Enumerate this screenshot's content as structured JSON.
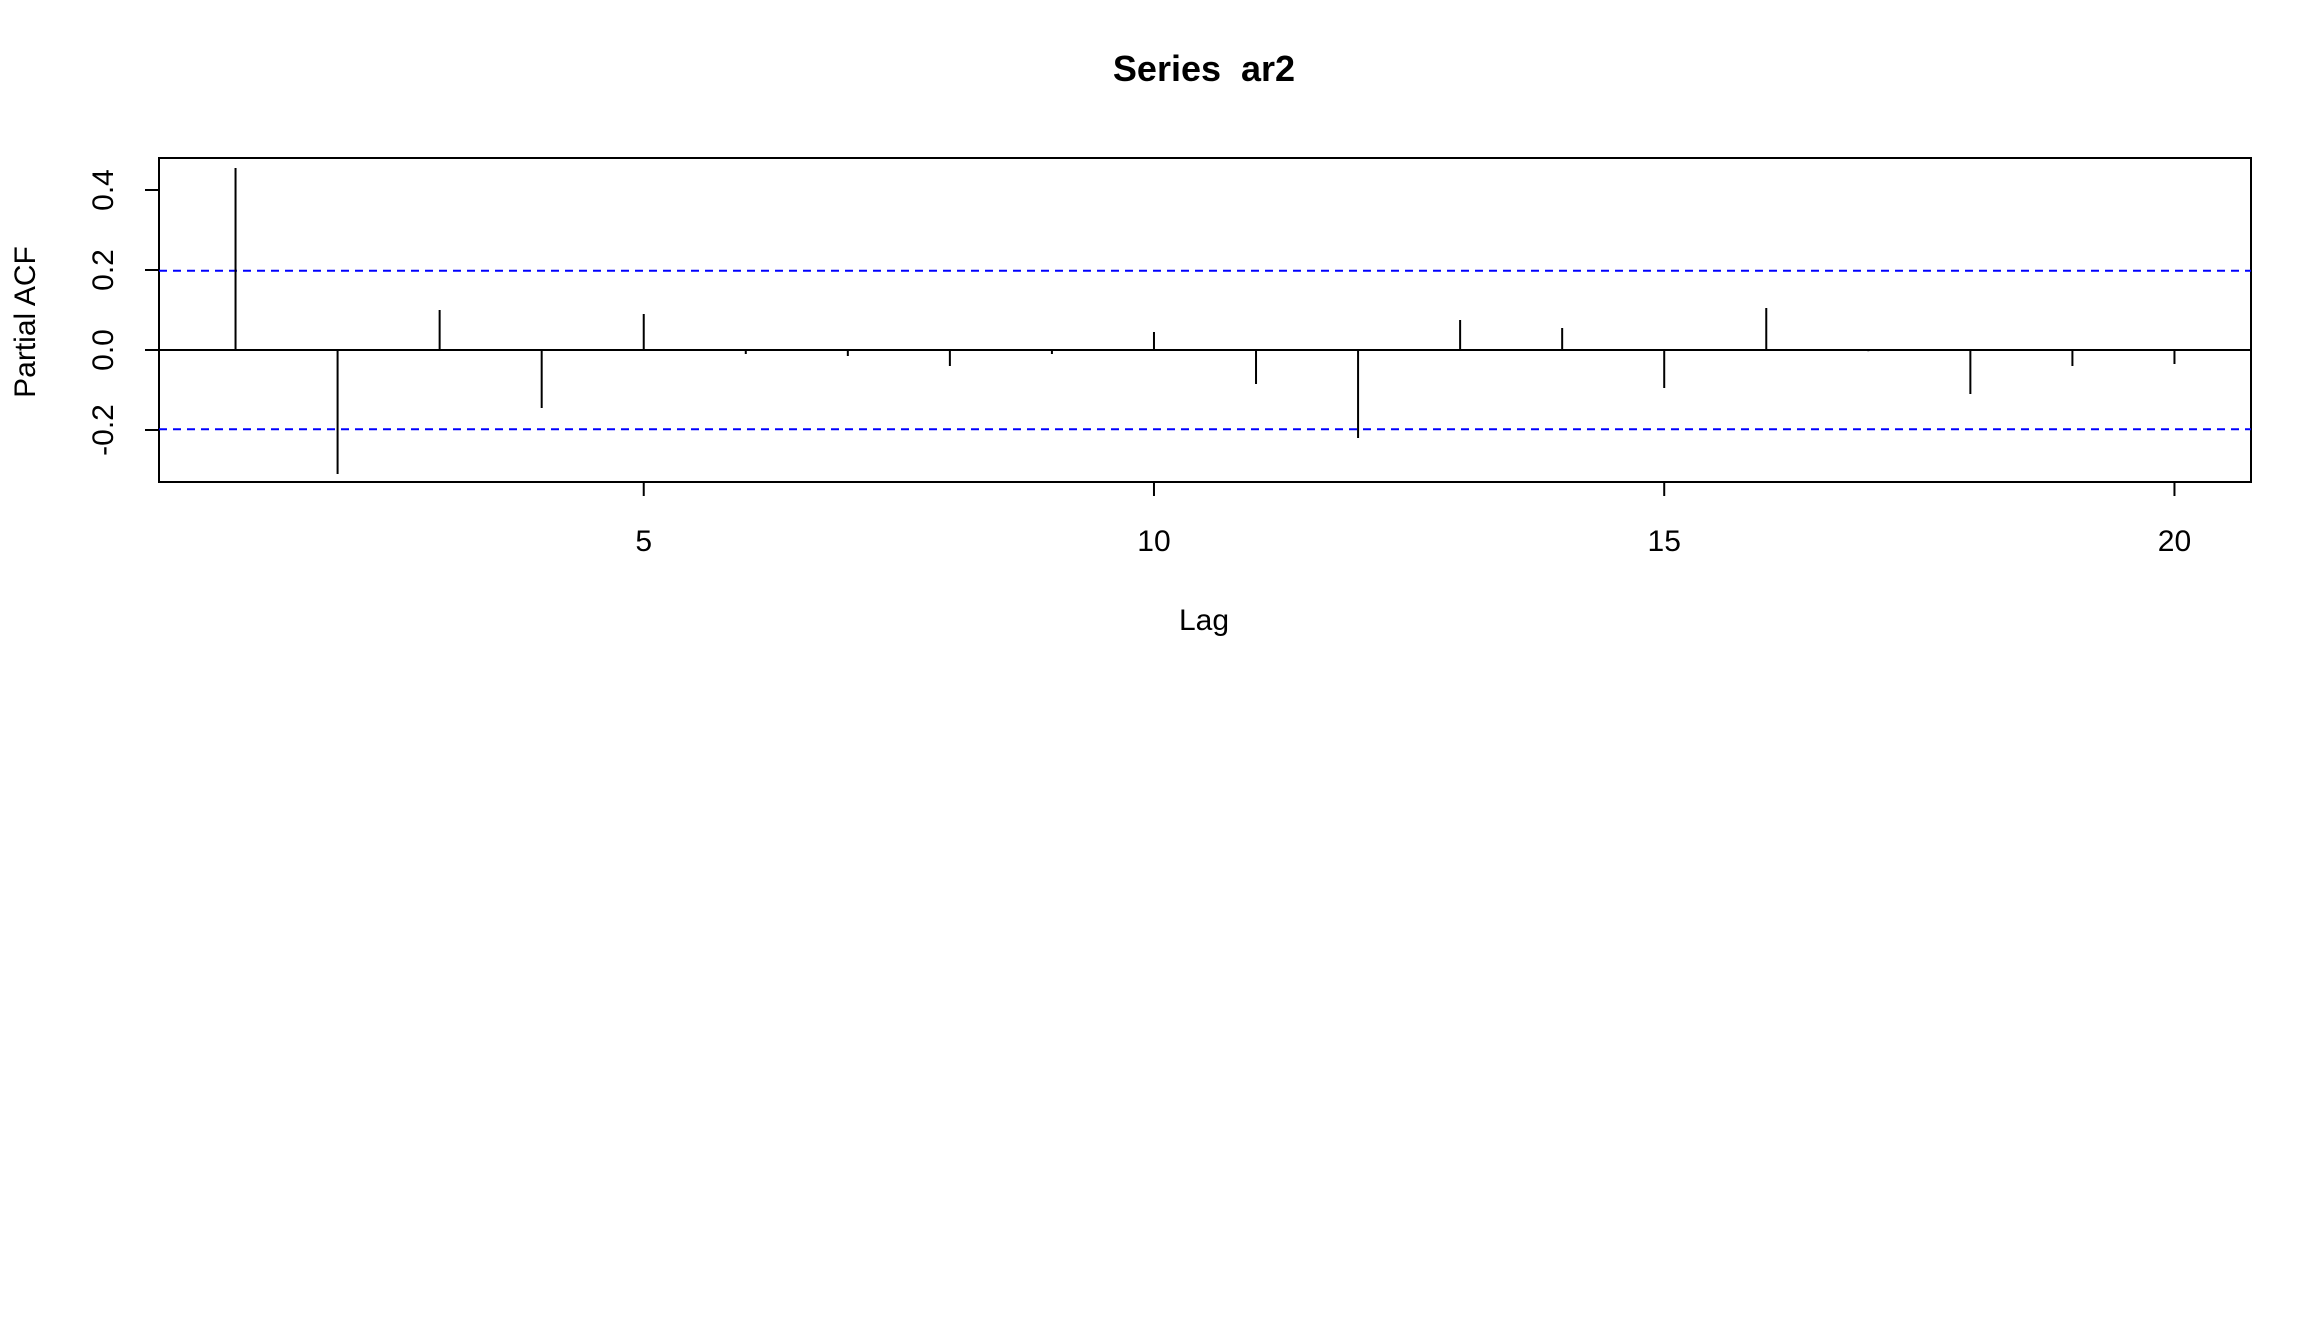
{
  "chart_data": {
    "type": "bar",
    "title": "Series  ar2",
    "xlabel": "Lag",
    "ylabel": "Partial ACF",
    "x": [
      1,
      2,
      3,
      4,
      5,
      6,
      7,
      8,
      9,
      10,
      11,
      12,
      13,
      14,
      15,
      16,
      17,
      18,
      19,
      20
    ],
    "values": [
      0.455,
      -0.31,
      0.1,
      -0.145,
      0.09,
      -0.01,
      -0.015,
      -0.04,
      -0.01,
      0.045,
      -0.085,
      -0.22,
      0.075,
      0.055,
      -0.095,
      0.105,
      -0.003,
      -0.11,
      -0.04,
      -0.035
    ],
    "confidence_band": 0.198,
    "xlim": [
      0.25,
      20.75
    ],
    "ylim": [
      -0.33,
      0.48
    ],
    "xticks": [
      5,
      10,
      15,
      20
    ],
    "yticks": [
      -0.2,
      0.0,
      0.2,
      0.4
    ],
    "ytick_labels": [
      "-0.2",
      "0.0",
      "0.2",
      "0.4"
    ],
    "grid": false,
    "colors": {
      "bars": "#000000",
      "confidence_lines": "#0000ff",
      "zero_line": "#000000"
    }
  }
}
